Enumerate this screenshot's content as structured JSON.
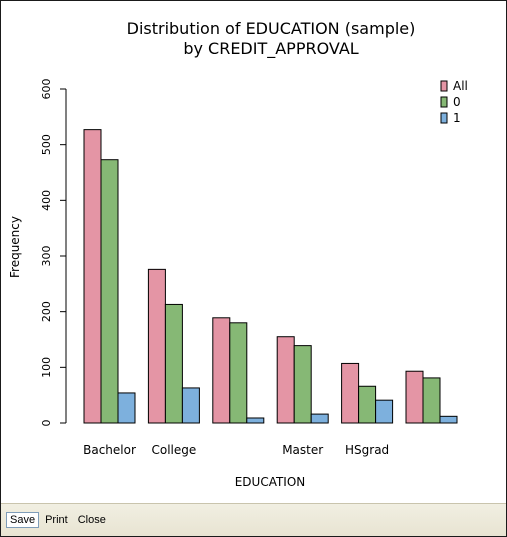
{
  "toolbar": {
    "save_label": "Save",
    "print_label": "Print",
    "close_label": "Close"
  },
  "colors": {
    "All": "#e495a5",
    "0": "#86b875",
    "1": "#7db0dd"
  },
  "chart_data": {
    "type": "bar",
    "title": "Distribution of EDUCATION (sample)",
    "subtitle": "by CREDIT_APPROVAL",
    "xlabel": "EDUCATION",
    "ylabel": "Frequency",
    "ylim": [
      0,
      600
    ],
    "yticks": [
      0,
      100,
      200,
      300,
      400,
      500,
      600
    ],
    "categories": [
      "Bachelor",
      "College",
      "",
      "Master",
      "HSgrad",
      ""
    ],
    "series": [
      {
        "name": "All",
        "values": [
          527,
          276,
          189,
          155,
          107,
          93
        ]
      },
      {
        "name": "0",
        "values": [
          473,
          213,
          180,
          139,
          66,
          81
        ]
      },
      {
        "name": "1",
        "values": [
          54,
          63,
          9,
          16,
          41,
          12
        ]
      }
    ],
    "legend_position": "top-right",
    "grid": false
  }
}
